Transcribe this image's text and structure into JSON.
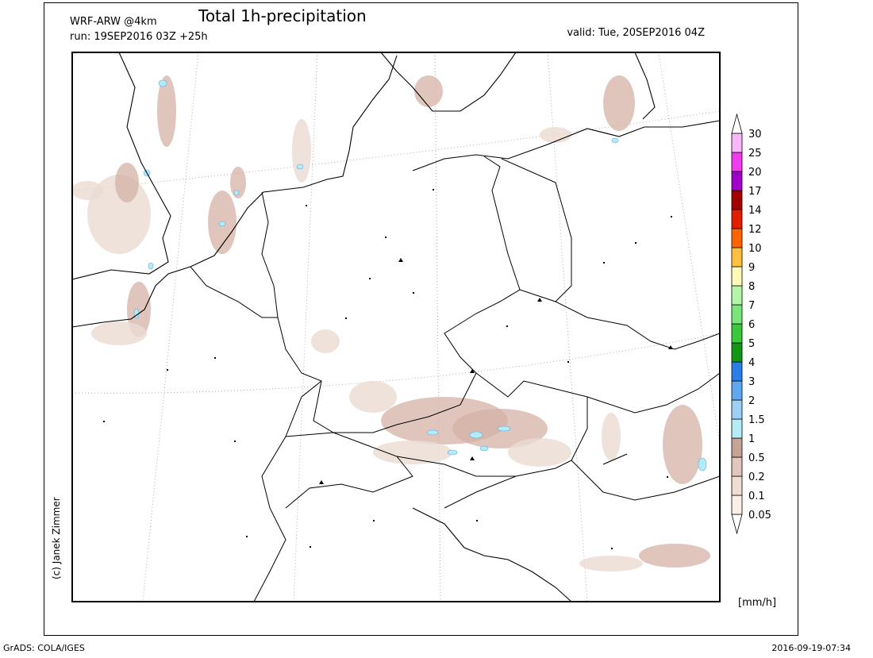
{
  "header": {
    "model": "WRF-ARW @4km",
    "title": "Total 1h-precipitation",
    "run": "run: 19SEP2016 03Z +25h",
    "valid": "valid: Tue, 20SEP2016 04Z"
  },
  "colorbar": {
    "labels": [
      0.05,
      0.1,
      0.2,
      0.5,
      1,
      1.5,
      2,
      3,
      4,
      5,
      6,
      7,
      8,
      9,
      10,
      12,
      14,
      17,
      20,
      25,
      30
    ],
    "colors": [
      "#ffffff",
      "#fbefe6",
      "#efdcd2",
      "#e0c6bc",
      "#c5a497",
      "#b4ecf6",
      "#9ed0f5",
      "#5fa8f0",
      "#2a7ee6",
      "#129616",
      "#3cc83c",
      "#78e678",
      "#b4f5a8",
      "#fffab4",
      "#ffc040",
      "#ff6400",
      "#e11e00",
      "#a50000",
      "#a000c8",
      "#f03cf0",
      "#f8b8f8",
      "#ffffff"
    ],
    "unit": "[mm/h]"
  },
  "credit": "(c) Janek Zimmer",
  "footer": {
    "software": "GrADS: COLA/IGES",
    "timestamp": "2016-09-19-07:34"
  }
}
